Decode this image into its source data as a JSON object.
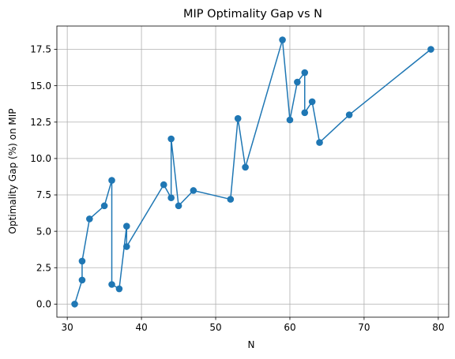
{
  "chart_data": {
    "type": "line",
    "title": "MIP Optimality Gap vs N",
    "xlabel": "N",
    "ylabel": "Optimality Gap (%) on MIP",
    "xlim": [
      28.6,
      81.4
    ],
    "ylim": [
      -0.9,
      19.1
    ],
    "xticks": [
      30,
      40,
      50,
      60,
      70,
      80
    ],
    "xtick_labels": [
      "30",
      "40",
      "50",
      "60",
      "70",
      "80"
    ],
    "yticks": [
      0.0,
      2.5,
      5.0,
      7.5,
      10.0,
      12.5,
      15.0,
      17.5
    ],
    "ytick_labels": [
      "0.0",
      "2.5",
      "5.0",
      "7.5",
      "10.0",
      "12.5",
      "15.0",
      "17.5"
    ],
    "grid": true,
    "color": "#1f77b4",
    "marker": "circle",
    "series": [
      {
        "x": [
          31,
          32,
          32,
          33,
          35,
          36,
          36,
          37,
          38,
          38,
          43,
          44,
          44,
          45,
          47,
          52,
          53,
          54,
          59,
          60,
          61,
          62,
          62,
          63,
          64,
          68,
          79
        ],
        "y": [
          0.0,
          1.65,
          2.95,
          5.85,
          6.75,
          8.5,
          1.35,
          1.05,
          5.35,
          3.95,
          8.2,
          7.3,
          11.35,
          6.75,
          7.8,
          7.2,
          12.75,
          9.4,
          18.15,
          12.65,
          15.25,
          15.9,
          13.15,
          13.9,
          11.1,
          13.0,
          17.5
        ]
      }
    ]
  }
}
